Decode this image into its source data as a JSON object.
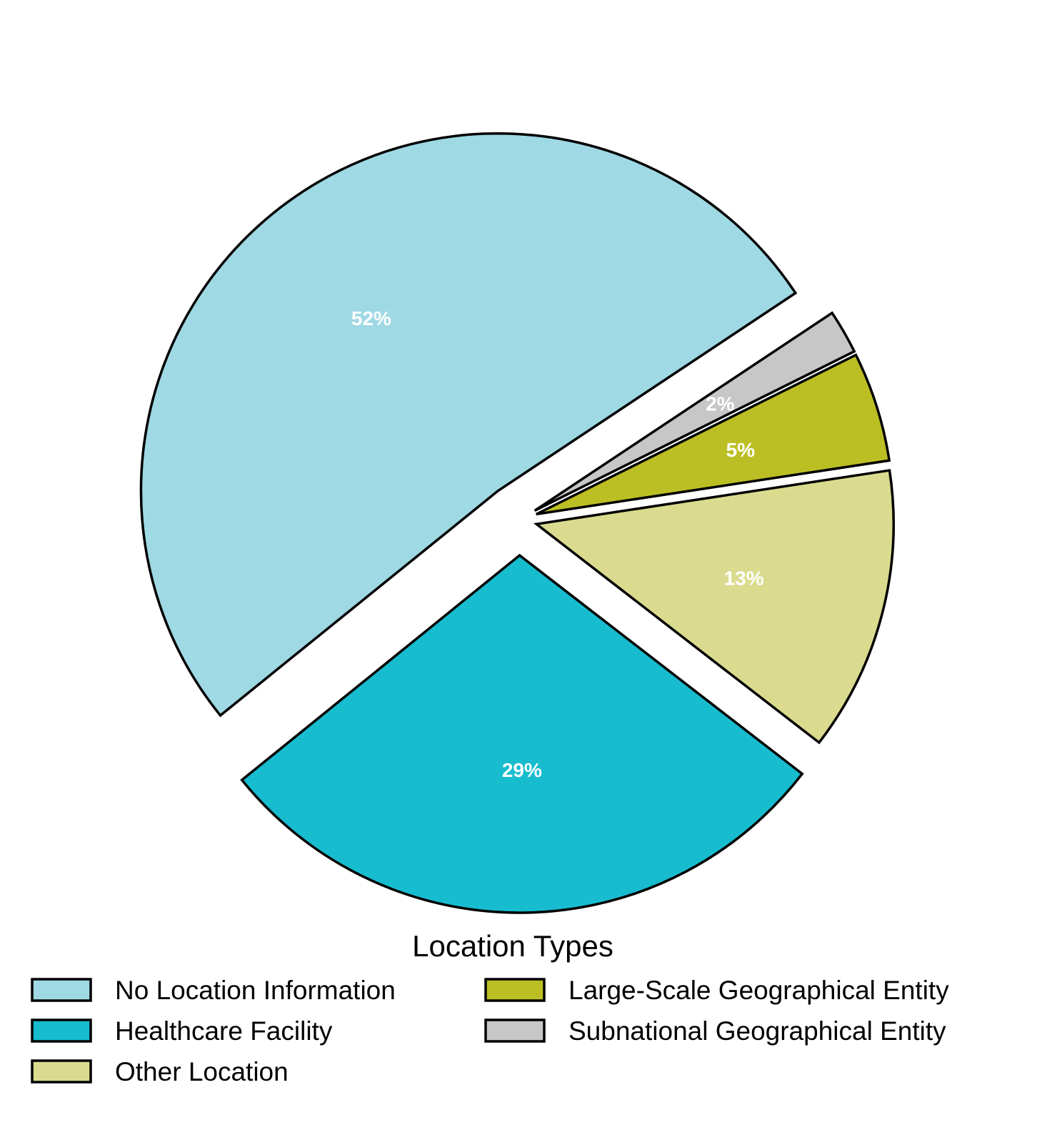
{
  "chart_data": {
    "type": "pie",
    "title": "",
    "legend_title": "Location Types",
    "legend_placement": "bottom",
    "slices": [
      {
        "label": "No Location Information",
        "value": 52,
        "value_label": "52%",
        "color": "#9fd9e4"
      },
      {
        "label": "Healthcare Facility",
        "value": 29,
        "value_label": "29%",
        "color": "#18bccf"
      },
      {
        "label": "Other Location",
        "value": 13,
        "value_label": "13%",
        "color": "#dadb8e"
      },
      {
        "label": "Large-Scale Geographical Entity",
        "value": 5,
        "value_label": "5%",
        "color": "#bcbf24"
      },
      {
        "label": "Subnational Geographical Entity",
        "value": 2,
        "value_label": "2%",
        "color": "#c7c7c7"
      }
    ]
  }
}
